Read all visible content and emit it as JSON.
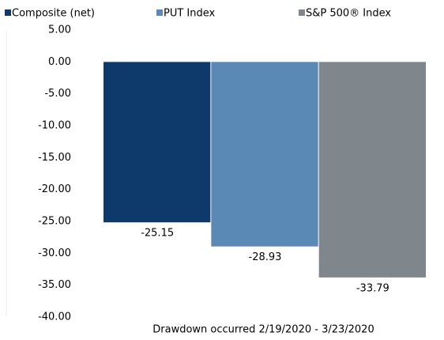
{
  "chart_data": {
    "type": "bar",
    "categories": [
      "Drawdown occurred 2/19/2020 - 3/23/2020"
    ],
    "series": [
      {
        "name": "Composite (net)",
        "color": "#0d3a6b",
        "values": [
          -25.15
        ]
      },
      {
        "name": "PUT Index",
        "color": "#5b89b5",
        "values": [
          -28.93
        ]
      },
      {
        "name": "S&P 500® Index",
        "color": "#7f878c",
        "values": [
          -33.79
        ]
      }
    ],
    "ylim": [
      -40,
      5
    ],
    "yticks": [
      {
        "value": 5,
        "label": "5.00"
      },
      {
        "value": 0,
        "label": "0.00"
      },
      {
        "value": -5,
        "label": "-5.00"
      },
      {
        "value": -10,
        "label": "-10.00"
      },
      {
        "value": -15,
        "label": "-15.00"
      },
      {
        "value": -20,
        "label": "-20.00"
      },
      {
        "value": -25,
        "label": "-25.00"
      },
      {
        "value": -30,
        "label": "-30.00"
      },
      {
        "value": -35,
        "label": "-35.00"
      },
      {
        "value": -40,
        "label": "-40.00"
      }
    ],
    "legend": "top"
  }
}
